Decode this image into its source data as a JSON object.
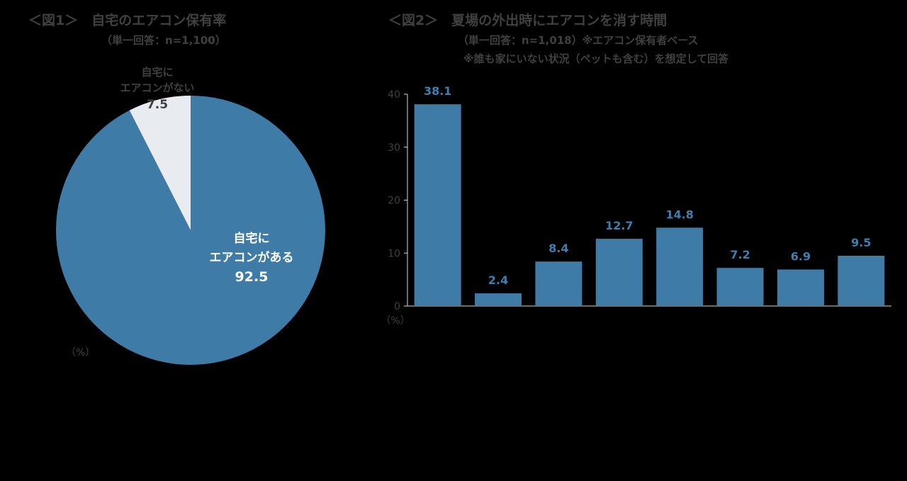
{
  "fig1": {
    "title": "＜図1＞　自宅のエアコン保有率",
    "note": "（単一回答：n=1,100）",
    "unit": "（%）",
    "colors": {
      "has": "#3e7ba6",
      "none": "#e8ecf0"
    }
  },
  "fig2": {
    "title": "＜図2＞　夏場の外出時にエアコンを消す時間",
    "note1": "（単一回答：n=1,018）※エアコン保有者ベース",
    "note2": "※誰も家にいない状況（ペットも含む）を想定して回答",
    "unit": "（%）",
    "bar_color": "#3e7ba6",
    "label_color": "#3d7fae"
  },
  "chart_data": [
    {
      "type": "pie",
      "slices": [
        {
          "label_line1": "自宅に",
          "label_line2": "エアコンがある",
          "value": 92.5,
          "value_text": "92.5"
        },
        {
          "label_line1": "自宅に",
          "label_line2": "エアコンがない",
          "value": 7.5,
          "value_text": "7.5"
        }
      ]
    },
    {
      "type": "bar",
      "categories": [
        "",
        "",
        "",
        "",
        "",
        "",
        "",
        ""
      ],
      "values": [
        38.1,
        2.4,
        8.4,
        12.7,
        14.8,
        7.2,
        6.9,
        9.5
      ],
      "value_labels": [
        "38.1",
        "2.4",
        "8.4",
        "12.7",
        "14.8",
        "7.2",
        "6.9",
        "9.5"
      ],
      "ylim": [
        0,
        40
      ],
      "yticks": [
        "0",
        "10",
        "20",
        "30",
        "40"
      ],
      "grid": false
    }
  ]
}
